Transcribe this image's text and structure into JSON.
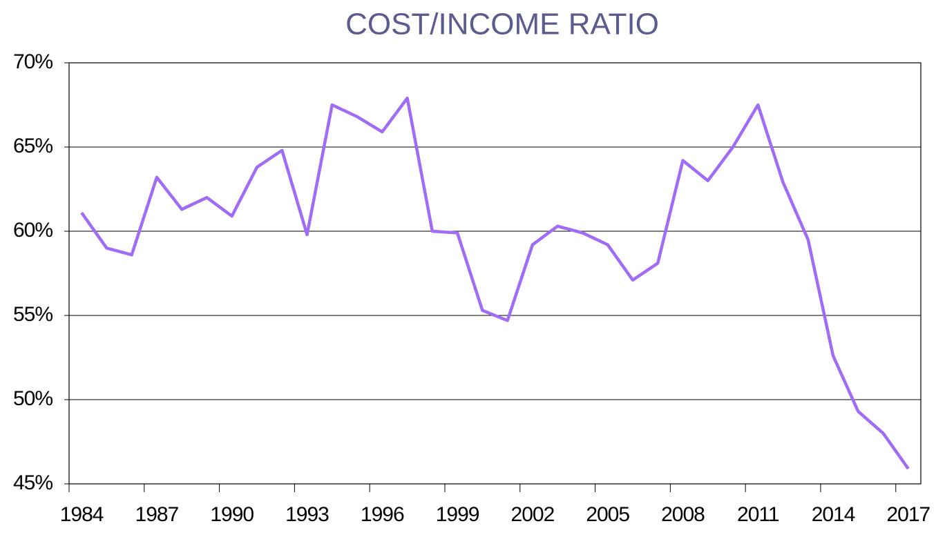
{
  "chart_data": {
    "type": "line",
    "title": "COST/INCOME RATIO",
    "categories": [
      "1984",
      null,
      null,
      "1987",
      null,
      null,
      "1990",
      null,
      null,
      "1993",
      null,
      null,
      "1996",
      null,
      null,
      "1999",
      null,
      null,
      "2002",
      null,
      null,
      "2005",
      null,
      null,
      "2008",
      null,
      null,
      "2011",
      null,
      null,
      "2014",
      null,
      null,
      "2017"
    ],
    "series": [
      {
        "name": "Cost/income ratio",
        "color": "#a06cf5",
        "values": [
          61.1,
          59.0,
          58.6,
          63.2,
          61.3,
          62.0,
          60.9,
          63.8,
          64.8,
          59.8,
          67.5,
          66.8,
          65.9,
          67.9,
          60.0,
          59.9,
          55.3,
          54.7,
          59.2,
          60.3,
          59.9,
          59.2,
          57.1,
          58.1,
          64.2,
          63.0,
          65.0,
          67.5,
          62.9,
          59.5,
          52.6,
          49.3,
          48.0,
          45.9
        ]
      }
    ],
    "ylim": [
      45,
      70
    ],
    "yticks": [
      {
        "value": 45,
        "label": "45%"
      },
      {
        "value": 50,
        "label": "50%"
      },
      {
        "value": 55,
        "label": "55%"
      },
      {
        "value": 60,
        "label": "60%"
      },
      {
        "value": 65,
        "label": "65%"
      },
      {
        "value": 70,
        "label": "70%"
      }
    ],
    "grid": true
  }
}
